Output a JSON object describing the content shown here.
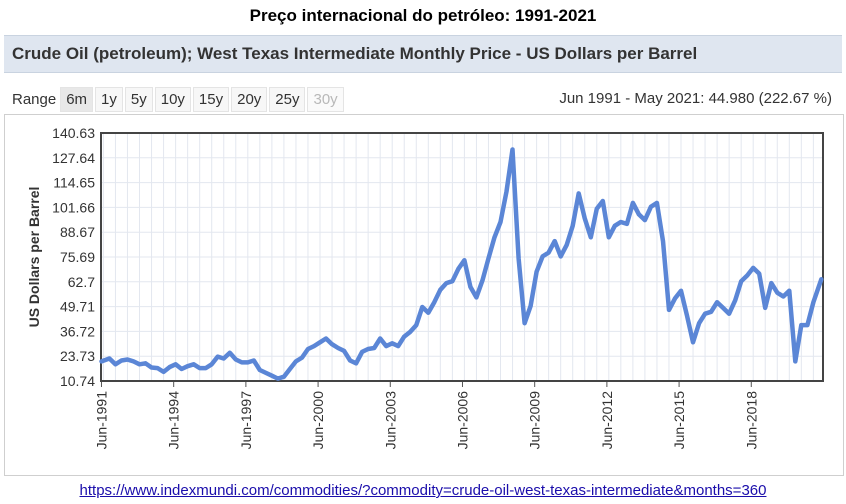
{
  "page": {
    "title": "Preço internacional do petróleo: 1991-2021",
    "source_url": "https://www.indexmundi.com/commodities/?commodity=crude-oil-west-texas-intermediate&months=360"
  },
  "chart_header": "Crude Oil (petroleum); West Texas Intermediate Monthly Price - US Dollars per Barrel",
  "range": {
    "label": "Range",
    "buttons": [
      {
        "label": "6m",
        "state": "active"
      },
      {
        "label": "1y",
        "state": "normal"
      },
      {
        "label": "5y",
        "state": "normal"
      },
      {
        "label": "10y",
        "state": "normal"
      },
      {
        "label": "15y",
        "state": "normal"
      },
      {
        "label": "20y",
        "state": "normal"
      },
      {
        "label": "25y",
        "state": "normal"
      },
      {
        "label": "30y",
        "state": "disabled"
      }
    ],
    "summary": "Jun 1991 - May 2021: 44.980 (222.67 %)"
  },
  "chart_data": {
    "type": "line",
    "title": "",
    "xlabel": "",
    "ylabel": "US Dollars per Barrel",
    "ylim": [
      10.74,
      140.63
    ],
    "yticks": [
      "140.63",
      "127.64",
      "114.65",
      "101.66",
      "88.67",
      "75.69",
      "62.7",
      "49.71",
      "36.72",
      "23.73",
      "10.74"
    ],
    "xticks": [
      "Jun-1991",
      "Jun-1994",
      "Jun-1997",
      "Jun-2000",
      "Jun-2003",
      "Jun-2006",
      "Jun-2009",
      "Jun-2012",
      "Jun-2015",
      "Jun-2018"
    ],
    "xlim": [
      1991.4,
      2021.4
    ],
    "grid": true,
    "line_color": "#5b86d6",
    "series": [
      {
        "x": [
          1991.42,
          1991.75,
          1992.0,
          1992.25,
          1992.5,
          1992.75,
          1993.0,
          1993.25,
          1993.5,
          1993.75,
          1994.0,
          1994.25,
          1994.5,
          1994.75,
          1995.0,
          1995.25,
          1995.5,
          1995.75,
          1996.0,
          1996.25,
          1996.5,
          1996.75,
          1997.0,
          1997.25,
          1997.5,
          1997.75,
          1998.0,
          1998.25,
          1998.5,
          1998.75,
          1999.0,
          1999.25,
          1999.5,
          1999.75,
          2000.0,
          2000.25,
          2000.5,
          2000.75,
          2001.0,
          2001.25,
          2001.5,
          2001.75,
          2002.0,
          2002.25,
          2002.5,
          2002.75,
          2003.0,
          2003.25,
          2003.5,
          2003.75,
          2004.0,
          2004.25,
          2004.5,
          2004.75,
          2005.0,
          2005.25,
          2005.5,
          2005.75,
          2006.0,
          2006.25,
          2006.5,
          2006.75,
          2007.0,
          2007.25,
          2007.5,
          2007.75,
          2008.0,
          2008.25,
          2008.5,
          2008.75,
          2009.0,
          2009.25,
          2009.5,
          2009.75,
          2010.0,
          2010.25,
          2010.5,
          2010.75,
          2011.0,
          2011.25,
          2011.5,
          2011.75,
          2012.0,
          2012.25,
          2012.5,
          2012.75,
          2013.0,
          2013.25,
          2013.5,
          2013.75,
          2014.0,
          2014.25,
          2014.5,
          2014.75,
          2015.0,
          2015.25,
          2015.5,
          2015.75,
          2016.0,
          2016.25,
          2016.5,
          2016.75,
          2017.0,
          2017.25,
          2017.5,
          2017.75,
          2018.0,
          2018.25,
          2018.5,
          2018.75,
          2019.0,
          2019.25,
          2019.5,
          2019.75,
          2020.0,
          2020.25,
          2020.5,
          2020.75,
          2021.0,
          2021.33
        ],
        "values": [
          21.0,
          22.5,
          19.5,
          21.5,
          22.0,
          21.0,
          19.5,
          20.0,
          17.8,
          17.5,
          15.5,
          18.0,
          19.5,
          17.0,
          18.5,
          19.5,
          17.5,
          17.5,
          19.5,
          23.5,
          22.5,
          25.5,
          22.0,
          20.5,
          20.5,
          21.5,
          16.5,
          15.0,
          13.5,
          12.0,
          13.0,
          17.0,
          21.0,
          23.0,
          27.5,
          29.0,
          31.0,
          33.0,
          30.0,
          28.0,
          26.5,
          21.5,
          20.0,
          26.0,
          27.5,
          28.0,
          33.0,
          29.0,
          30.5,
          29.0,
          34.0,
          36.5,
          40.0,
          49.5,
          46.5,
          52.0,
          58.5,
          62.0,
          63.0,
          69.5,
          74.0,
          60.0,
          54.5,
          63.5,
          75.0,
          86.0,
          94.0,
          110.0,
          132.0,
          75.0,
          41.0,
          50.0,
          68.0,
          76.0,
          78.0,
          84.0,
          76.0,
          82.0,
          92.0,
          109.0,
          96.0,
          86.0,
          101.0,
          105.0,
          86.0,
          92.0,
          94.0,
          93.0,
          104.0,
          98.0,
          95.0,
          102.0,
          104.0,
          84.0,
          48.0,
          54.0,
          58.0,
          45.0,
          31.0,
          41.0,
          46.0,
          47.0,
          52.0,
          49.0,
          46.0,
          53.0,
          63.0,
          66.0,
          70.0,
          67.0,
          49.0,
          62.0,
          57.0,
          55.0,
          58.0,
          21.0,
          40.0,
          40.0,
          52.0,
          64.0
        ]
      }
    ]
  }
}
